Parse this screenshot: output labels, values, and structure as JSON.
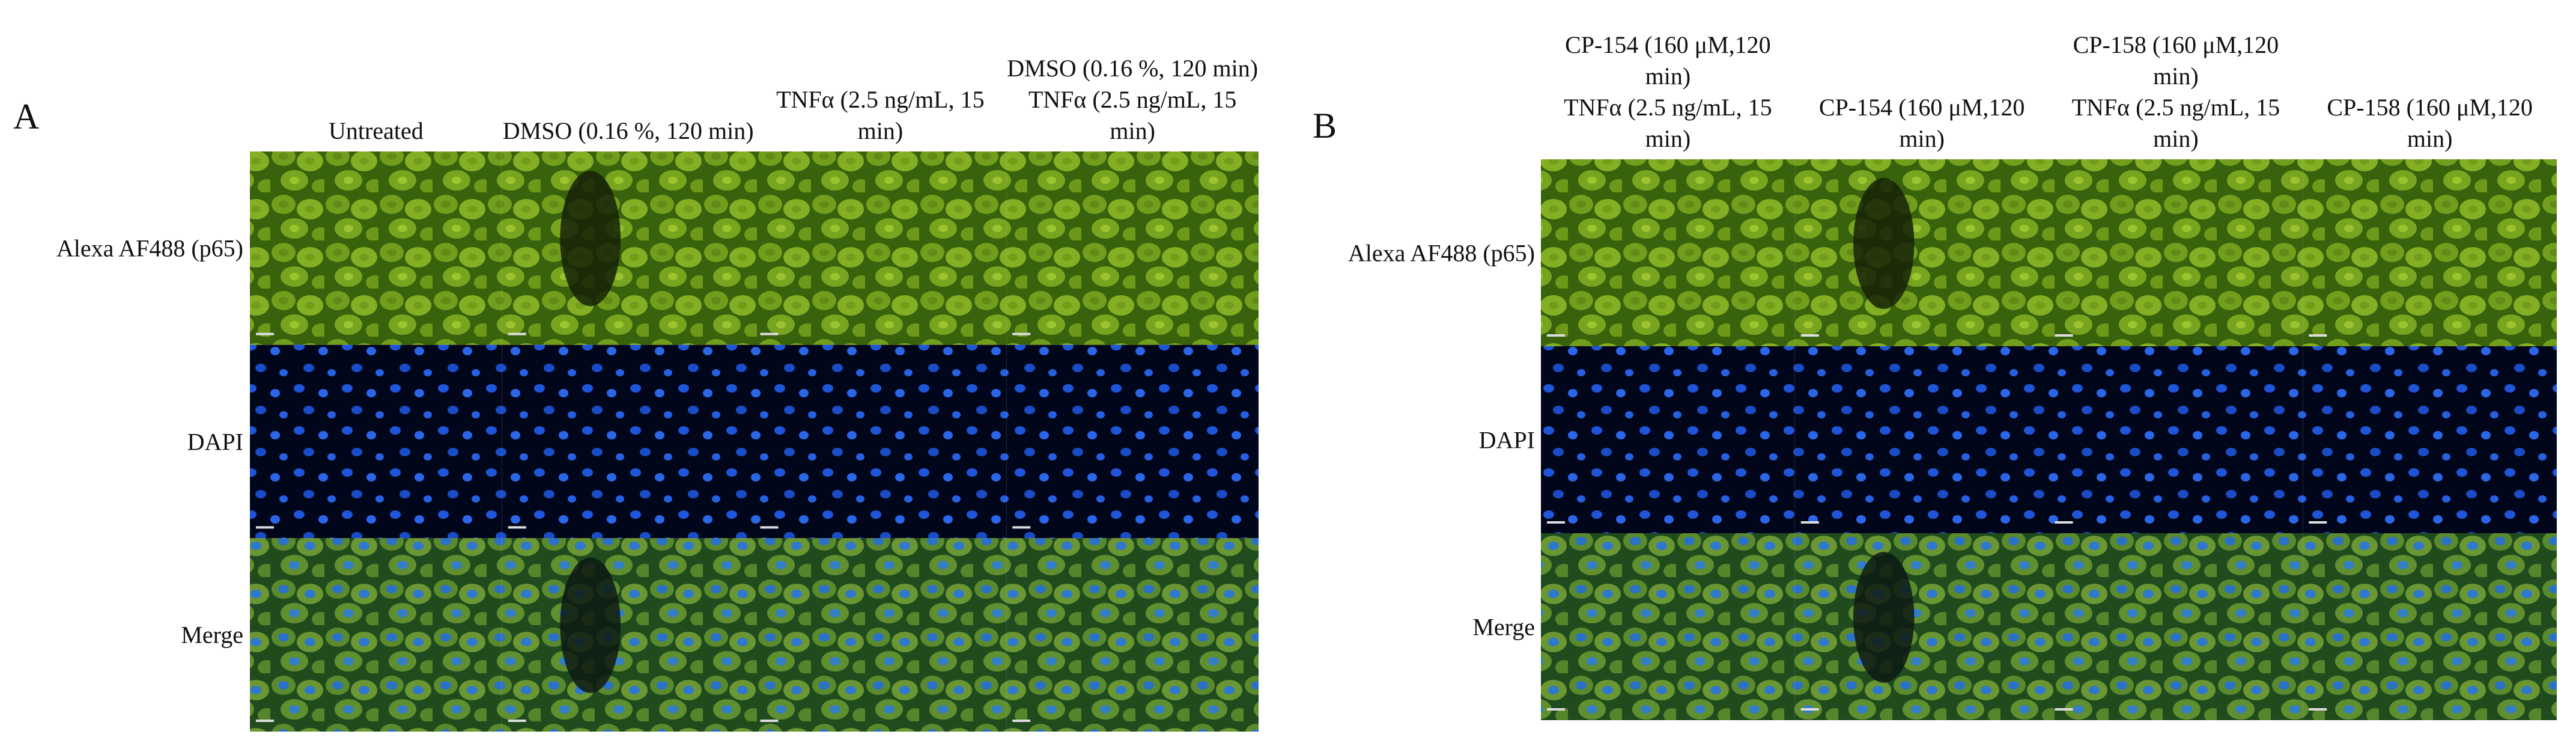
{
  "panels": [
    {
      "label": "A",
      "columns": [
        [
          "Untreated"
        ],
        [
          "DMSO (0.16 %, 120 min)"
        ],
        [
          "TNFα (2.5 ng/mL, 15 min)"
        ],
        [
          "DMSO (0.16 %, 120 min)",
          "TNFα (2.5 ng/mL, 15 min)"
        ]
      ],
      "rows": [
        "Alexa AF488 (p65)",
        "DAPI",
        "Merge"
      ]
    },
    {
      "label": "B",
      "columns": [
        [
          "CP-154 (160 μM,120 min)",
          "TNFα (2.5 ng/mL, 15 min)"
        ],
        [
          "CP-154 (160 μM,120 min)"
        ],
        [
          "CP-158 (160 μM,120 min)",
          "TNFα (2.5 ng/mL, 15 min)"
        ],
        [
          "CP-158 (160 μM,120 min)"
        ]
      ],
      "rows": [
        "Alexa AF488 (p65)",
        "DAPI",
        "Merge"
      ]
    }
  ]
}
